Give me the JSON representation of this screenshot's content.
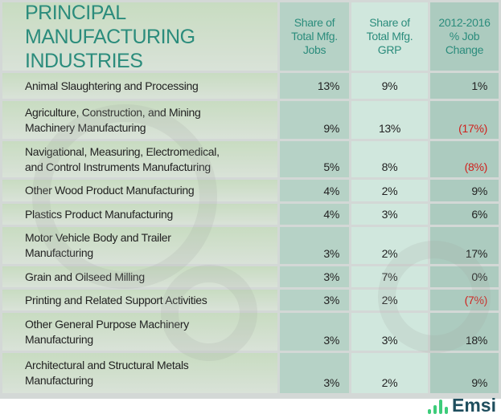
{
  "chart_data": {
    "type": "table",
    "title": "PRINCIPAL MANUFACTURING INDUSTRIES",
    "columns": [
      "Share of Total Mfg. Jobs",
      "Share of Total Mfg. GRP",
      "2012-2016 % Job Change"
    ],
    "rows": [
      {
        "industry": "Animal Slaughtering and Processing",
        "jobs": "13%",
        "grp": "9%",
        "change": "1%"
      },
      {
        "industry": "Agriculture, Construction, and Mining Machinery Manufacturing",
        "jobs": "9%",
        "grp": "13%",
        "change": "(17%)"
      },
      {
        "industry": "Navigational, Measuring, Electromedical, and Control Instruments Manufacturing",
        "jobs": "5%",
        "grp": "8%",
        "change": "(8%)"
      },
      {
        "industry": "Other Wood Product Manufacturing",
        "jobs": "4%",
        "grp": "2%",
        "change": "9%"
      },
      {
        "industry": "Plastics Product Manufacturing",
        "jobs": "4%",
        "grp": "3%",
        "change": "6%"
      },
      {
        "industry": "Motor Vehicle Body and Trailer Manufacturing",
        "jobs": "3%",
        "grp": "2%",
        "change": "17%"
      },
      {
        "industry": "Grain and Oilseed Milling",
        "jobs": "3%",
        "grp": "7%",
        "change": "0%"
      },
      {
        "industry": "Printing and Related Support Activities",
        "jobs": "3%",
        "grp": "2%",
        "change": "(7%)"
      },
      {
        "industry": "Other General Purpose Machinery Manufacturing",
        "jobs": "3%",
        "grp": "3%",
        "change": "18%"
      },
      {
        "industry": "Architectural and Structural Metals Manufacturing",
        "jobs": "3%",
        "grp": "2%",
        "change": "9%"
      }
    ],
    "negative_color": "#d0201c",
    "header_color": "#2b8c7c"
  },
  "logo": {
    "text": "Emsi",
    "color": "#1f4e5e",
    "accent": "#3dcc7a"
  }
}
